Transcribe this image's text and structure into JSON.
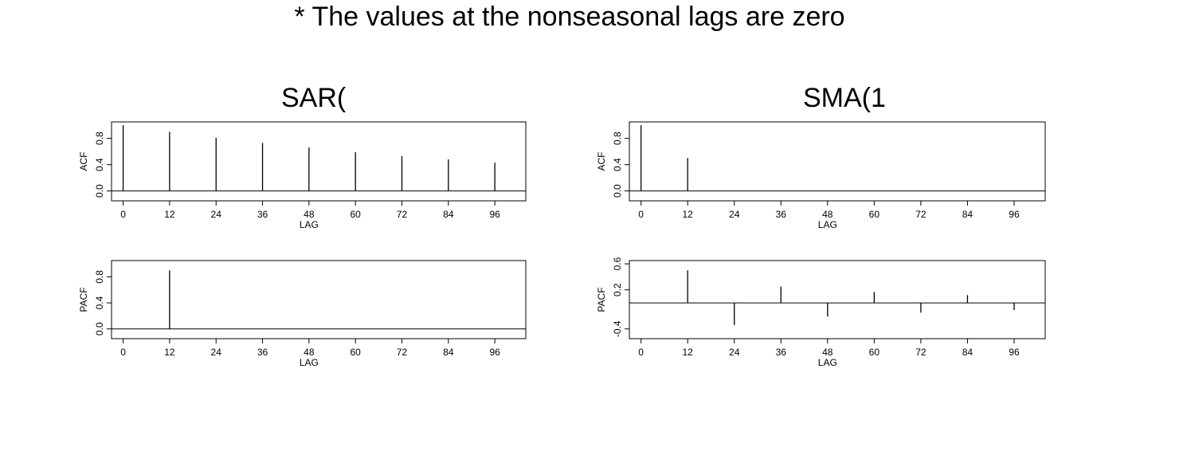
{
  "note": "* The values at the nonseasonal lags are zero",
  "panels": [
    {
      "title": "SAR("
    },
    {
      "title": "SMA(1"
    }
  ],
  "chart_data": [
    {
      "type": "bar",
      "panel": "SAR(",
      "xlabel": "LAG",
      "ylabel": "ACF",
      "x": [
        0,
        12,
        24,
        36,
        48,
        60,
        72,
        84,
        96
      ],
      "values": [
        1.0,
        0.9,
        0.81,
        0.73,
        0.66,
        0.59,
        0.53,
        0.48,
        0.43
      ],
      "xlim": [
        -3,
        104
      ],
      "ylim": [
        -0.15,
        1.05
      ],
      "xticks": [
        "0",
        "12",
        "24",
        "36",
        "48",
        "60",
        "72",
        "84",
        "96"
      ],
      "yticks": [
        "0.0",
        "0.4",
        "0.8"
      ],
      "grid": false
    },
    {
      "type": "bar",
      "panel": "SMA(1",
      "xlabel": "LAG",
      "ylabel": "ACF",
      "x": [
        0,
        12
      ],
      "values": [
        1.0,
        0.5
      ],
      "xlim": [
        -3,
        104
      ],
      "ylim": [
        -0.15,
        1.05
      ],
      "xticks": [
        "0",
        "12",
        "24",
        "36",
        "48",
        "60",
        "72",
        "84",
        "96"
      ],
      "yticks": [
        "0.0",
        "0.4",
        "0.8"
      ],
      "grid": false
    },
    {
      "type": "bar",
      "panel": "SAR(",
      "xlabel": "LAG",
      "ylabel": "PACF",
      "x": [
        12
      ],
      "values": [
        0.9
      ],
      "xlim": [
        -3,
        104
      ],
      "ylim": [
        -0.15,
        1.05
      ],
      "xticks": [
        "0",
        "12",
        "24",
        "36",
        "48",
        "60",
        "72",
        "84",
        "96"
      ],
      "yticks": [
        "0.0",
        "0.4",
        "0.8"
      ],
      "grid": false
    },
    {
      "type": "bar",
      "panel": "SMA(1",
      "xlabel": "LAG",
      "ylabel": "PACF",
      "x": [
        12,
        24,
        36,
        48,
        60,
        72,
        84,
        96
      ],
      "values": [
        0.5,
        -0.34,
        0.25,
        -0.21,
        0.17,
        -0.15,
        0.12,
        -0.11
      ],
      "xlim": [
        -3,
        104
      ],
      "ylim": [
        -0.55,
        0.65
      ],
      "xticks": [
        "0",
        "12",
        "24",
        "36",
        "48",
        "60",
        "72",
        "84",
        "96"
      ],
      "yticks": [
        "-0.4",
        "0.2",
        "0.6"
      ],
      "grid": false
    }
  ]
}
